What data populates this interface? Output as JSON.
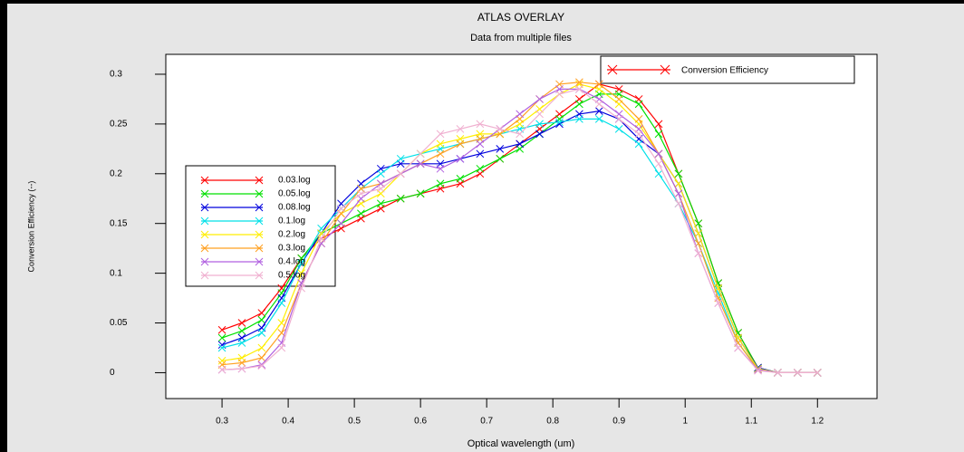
{
  "chart_data": {
    "type": "line",
    "title": "ATLAS OVERLAY",
    "subtitle": "Data from multiple files",
    "x_label": "Optical wavelength (um)",
    "y_label": "Conversion Efficiency (--)",
    "legend_top": {
      "label": "Conversion Efficiency",
      "color": "#ff0000"
    },
    "xlim": [
      0.215,
      1.29
    ],
    "ylim": [
      -0.026,
      0.32
    ],
    "xticks": [
      0.3,
      0.4,
      0.5,
      0.6,
      0.7,
      0.8,
      0.9,
      1,
      1.1,
      1.2
    ],
    "yticks": [
      0,
      0.05,
      0.1,
      0.15,
      0.2,
      0.25,
      0.3
    ],
    "x": [
      0.3,
      0.33,
      0.36,
      0.39,
      0.42,
      0.45,
      0.48,
      0.51,
      0.54,
      0.57,
      0.6,
      0.63,
      0.66,
      0.69,
      0.72,
      0.75,
      0.78,
      0.81,
      0.84,
      0.87,
      0.9,
      0.93,
      0.96,
      0.99,
      1.02,
      1.05,
      1.08,
      1.11,
      1.14,
      1.17,
      1.2
    ],
    "series": [
      {
        "name": "0.03.log",
        "color": "#ff0000",
        "values": [
          0.043,
          0.05,
          0.06,
          0.085,
          0.115,
          0.135,
          0.145,
          0.155,
          0.165,
          0.175,
          0.18,
          0.185,
          0.19,
          0.2,
          0.215,
          0.23,
          0.245,
          0.26,
          0.275,
          0.29,
          0.285,
          0.275,
          0.25,
          0.2,
          0.15,
          0.09,
          0.04,
          0.005,
          0,
          0,
          0
        ]
      },
      {
        "name": "0.05.log",
        "color": "#00e000",
        "values": [
          0.035,
          0.042,
          0.053,
          0.08,
          0.115,
          0.14,
          0.15,
          0.16,
          0.17,
          0.175,
          0.18,
          0.19,
          0.195,
          0.205,
          0.215,
          0.225,
          0.24,
          0.255,
          0.27,
          0.28,
          0.28,
          0.27,
          0.24,
          0.2,
          0.15,
          0.09,
          0.04,
          0.005,
          0,
          0,
          0
        ]
      },
      {
        "name": "0.08.log",
        "color": "#0000dd",
        "values": [
          0.028,
          0.035,
          0.045,
          0.075,
          0.11,
          0.14,
          0.17,
          0.19,
          0.205,
          0.21,
          0.21,
          0.21,
          0.215,
          0.22,
          0.225,
          0.23,
          0.24,
          0.25,
          0.26,
          0.263,
          0.255,
          0.235,
          0.22,
          0.19,
          0.14,
          0.085,
          0.035,
          0.005,
          0,
          0,
          0
        ]
      },
      {
        "name": "0.1.log",
        "color": "#00e0e8",
        "values": [
          0.025,
          0.03,
          0.04,
          0.07,
          0.11,
          0.145,
          0.165,
          0.185,
          0.2,
          0.215,
          0.22,
          0.225,
          0.23,
          0.235,
          0.24,
          0.245,
          0.25,
          0.252,
          0.255,
          0.255,
          0.245,
          0.23,
          0.2,
          0.17,
          0.13,
          0.08,
          0.03,
          0.004,
          0,
          0,
          0
        ]
      },
      {
        "name": "0.2.log",
        "color": "#ffee00",
        "values": [
          0.012,
          0.015,
          0.025,
          0.05,
          0.1,
          0.14,
          0.16,
          0.17,
          0.18,
          0.2,
          0.22,
          0.23,
          0.235,
          0.24,
          0.24,
          0.25,
          0.265,
          0.28,
          0.29,
          0.285,
          0.27,
          0.25,
          0.22,
          0.19,
          0.14,
          0.085,
          0.035,
          0.004,
          0,
          0,
          0
        ]
      },
      {
        "name": "0.3.log",
        "color": "#ffa020",
        "values": [
          0.008,
          0.01,
          0.015,
          0.04,
          0.09,
          0.13,
          0.16,
          0.185,
          0.19,
          0.2,
          0.21,
          0.22,
          0.23,
          0.235,
          0.24,
          0.255,
          0.275,
          0.29,
          0.292,
          0.29,
          0.275,
          0.255,
          0.22,
          0.18,
          0.13,
          0.075,
          0.03,
          0.003,
          0,
          0,
          0
        ]
      },
      {
        "name": "0.4.log",
        "color": "#b060e0",
        "values": [
          0.003,
          0.004,
          0.008,
          0.03,
          0.09,
          0.13,
          0.15,
          0.175,
          0.19,
          0.2,
          0.21,
          0.205,
          0.215,
          0.23,
          0.245,
          0.26,
          0.275,
          0.285,
          0.285,
          0.275,
          0.26,
          0.245,
          0.22,
          0.18,
          0.12,
          0.07,
          0.025,
          0.003,
          0,
          0,
          0
        ]
      },
      {
        "name": "0.5.log",
        "color": "#f0b0d0",
        "values": [
          0.003,
          0.004,
          0.007,
          0.025,
          0.085,
          0.135,
          0.165,
          0.18,
          0.185,
          0.2,
          0.22,
          0.24,
          0.245,
          0.25,
          0.245,
          0.24,
          0.26,
          0.28,
          0.285,
          0.27,
          0.255,
          0.24,
          0.21,
          0.17,
          0.12,
          0.07,
          0.025,
          0.002,
          0,
          0,
          0
        ]
      }
    ]
  }
}
